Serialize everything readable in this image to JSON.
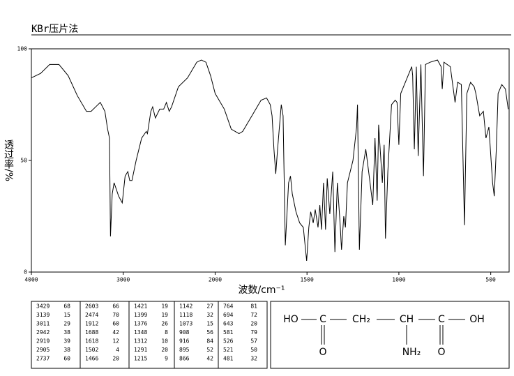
{
  "header": {
    "title": "KBr压片法"
  },
  "chart_data": {
    "type": "line",
    "x_label": "波数/cm⁻¹",
    "y_label": "透过率/%",
    "xlim": [
      4000,
      400
    ],
    "x_scale_break": 2000,
    "xticks": [
      4000,
      3000,
      2000,
      1500,
      1000,
      500
    ],
    "ylim": [
      0,
      100
    ],
    "yticks": [
      0,
      50,
      100
    ],
    "color": "#000000",
    "x": [
      4000,
      3900,
      3800,
      3700,
      3600,
      3500,
      3400,
      3350,
      3300,
      3250,
      3200,
      3170,
      3150,
      3139,
      3120,
      3100,
      3050,
      3011,
      2980,
      2950,
      2930,
      2905,
      2860,
      2800,
      2750,
      2737,
      2700,
      2680,
      2650,
      2603,
      2560,
      2530,
      2500,
      2474,
      2400,
      2300,
      2200,
      2150,
      2100,
      2050,
      2000,
      1950,
      1912,
      1870,
      1850,
      1800,
      1750,
      1720,
      1700,
      1690,
      1680,
      1670,
      1660,
      1640,
      1630,
      1618,
      1600,
      1590,
      1580,
      1560,
      1540,
      1520,
      1502,
      1490,
      1480,
      1466,
      1455,
      1440,
      1430,
      1421,
      1410,
      1399,
      1390,
      1376,
      1360,
      1348,
      1335,
      1320,
      1312,
      1300,
      1291,
      1280,
      1250,
      1230,
      1225,
      1215,
      1200,
      1180,
      1160,
      1142,
      1130,
      1118,
      1110,
      1090,
      1080,
      1073,
      1060,
      1040,
      1020,
      1010,
      1000,
      990,
      950,
      930,
      925,
      916,
      905,
      895,
      880,
      866,
      855,
      830,
      790,
      770,
      764,
      755,
      720,
      694,
      680,
      660,
      643,
      630,
      610,
      590,
      581,
      560,
      540,
      526,
      510,
      490,
      481,
      470,
      460,
      440,
      420,
      405
    ],
    "values": [
      87,
      89,
      93,
      93,
      88,
      79,
      72,
      72,
      74,
      76,
      72,
      64,
      60,
      16,
      35,
      40,
      34,
      31,
      43,
      45,
      41,
      41,
      50,
      60,
      63,
      62,
      72,
      74,
      69,
      73,
      73,
      76,
      72,
      74,
      83,
      87,
      94,
      95,
      94,
      88,
      80,
      73,
      64,
      62,
      63,
      70,
      77,
      78,
      75,
      70,
      55,
      44,
      55,
      75,
      70,
      12,
      40,
      43,
      35,
      27,
      22,
      20,
      5,
      20,
      27,
      22,
      28,
      20,
      30,
      19,
      40,
      19,
      42,
      26,
      45,
      9,
      40,
      22,
      10,
      25,
      20,
      40,
      50,
      65,
      75,
      10,
      45,
      55,
      42,
      30,
      60,
      32,
      66,
      40,
      57,
      15,
      45,
      75,
      77,
      76,
      57,
      80,
      88,
      92,
      88,
      55,
      92,
      52,
      93,
      43,
      93,
      94,
      95,
      92,
      82,
      94,
      92,
      76,
      85,
      84,
      21,
      80,
      85,
      83,
      80,
      70,
      72,
      60,
      65,
      40,
      34,
      55,
      80,
      84,
      82,
      73
    ]
  },
  "peaks": [
    [
      3429,
      68
    ],
    [
      3139,
      15
    ],
    [
      3011,
      29
    ],
    [
      2942,
      38
    ],
    [
      2919,
      39
    ],
    [
      2905,
      38
    ],
    [
      2737,
      60
    ],
    [
      2603,
      66
    ],
    [
      2474,
      70
    ],
    [
      1912,
      60
    ],
    [
      1688,
      42
    ],
    [
      1618,
      12
    ],
    [
      1502,
      4
    ],
    [
      1466,
      20
    ],
    [
      1421,
      19
    ],
    [
      1399,
      19
    ],
    [
      1376,
      26
    ],
    [
      1348,
      8
    ],
    [
      1312,
      10
    ],
    [
      1291,
      20
    ],
    [
      1215,
      9
    ],
    [
      1142,
      27
    ],
    [
      1118,
      32
    ],
    [
      1073,
      15
    ],
    [
      908,
      56
    ],
    [
      916,
      84
    ],
    [
      895,
      52
    ],
    [
      866,
      42
    ],
    [
      764,
      81
    ],
    [
      694,
      72
    ],
    [
      643,
      20
    ],
    [
      581,
      79
    ],
    [
      526,
      57
    ],
    [
      521,
      50
    ],
    [
      481,
      32
    ]
  ],
  "structure": {
    "labels": [
      "HO",
      "C",
      "CH₂",
      "CH",
      "C",
      "OH",
      "O",
      "NH₂",
      "O"
    ]
  }
}
